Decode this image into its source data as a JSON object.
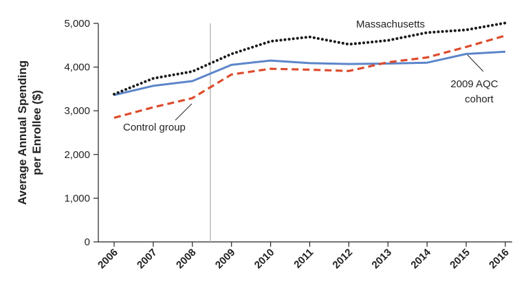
{
  "chart_data": {
    "type": "line",
    "ylabel_line1": "Average Annual Spending",
    "ylabel_line2": "per Enrollee ($)",
    "x": [
      "2006",
      "2007",
      "2008",
      "2009",
      "2010",
      "2011",
      "2012",
      "2013",
      "2014",
      "2015",
      "2016"
    ],
    "ylim": [
      0,
      5000
    ],
    "yticks": [
      0,
      1000,
      2000,
      3000,
      4000,
      5000
    ],
    "ytick_labels": [
      "0",
      "1,000",
      "2,000",
      "3,000",
      "4,000",
      "5,000"
    ],
    "intervention_marker": "between 2008 and 2009",
    "grid": false,
    "series": [
      {
        "name": "Massachusetts",
        "color": "#1a1a1a",
        "style": "dotted",
        "values": [
          3380,
          3740,
          3900,
          4300,
          4590,
          4690,
          4520,
          4610,
          4790,
          4850,
          5010
        ]
      },
      {
        "name": "2009 AQC cohort",
        "label_lines": [
          "2009 AQC",
          "cohort"
        ],
        "color": "#5b85c9",
        "style": "solid",
        "values": [
          3360,
          3570,
          3680,
          4050,
          4150,
          4090,
          4070,
          4080,
          4100,
          4300,
          4350
        ]
      },
      {
        "name": "Control group",
        "color": "#dd4b2c",
        "style": "dashed",
        "values": [
          2840,
          3080,
          3290,
          3830,
          3960,
          3940,
          3910,
          4110,
          4220,
          4460,
          4720
        ]
      }
    ]
  }
}
